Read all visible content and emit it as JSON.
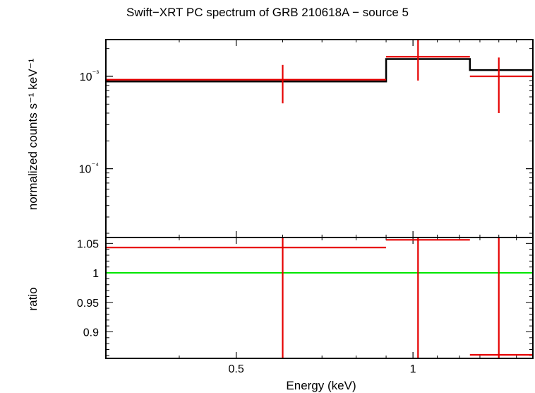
{
  "chart_data": {
    "type": "line",
    "title": "Swift−XRT PC spectrum of GRB 210618A − source 5",
    "xlabel": "Energy (keV)",
    "x_scale": "log",
    "xlim": [
      0.3,
      1.6
    ],
    "x_tick_labels": [
      "0.5",
      "1"
    ],
    "panels": [
      {
        "name": "spectrum",
        "ylabel": "normalized counts s⁻¹ keV⁻¹",
        "y_scale": "log",
        "ylim": [
          1.8e-05,
          0.0025
        ],
        "y_tick_labels": [
          "10⁻³",
          "10⁻⁴"
        ],
        "model": [
          {
            "x_lo": 0.3,
            "x_hi": 0.9,
            "y": 0.00088
          },
          {
            "x_lo": 0.9,
            "x_hi": 1.25,
            "y": 0.00154
          },
          {
            "x_lo": 1.25,
            "x_hi": 1.6,
            "y": 0.00117
          }
        ],
        "data": [
          {
            "x": 0.6,
            "x_lo": 0.3,
            "x_hi": 0.9,
            "y": 0.00092,
            "y_lo": 0.00051,
            "y_hi": 0.00133
          },
          {
            "x": 1.02,
            "x_lo": 0.9,
            "x_hi": 1.25,
            "y": 0.00163,
            "y_lo": 0.0009,
            "y_hi": 0.0025
          },
          {
            "x": 1.4,
            "x_lo": 1.25,
            "x_hi": 1.6,
            "y": 0.001,
            "y_lo": 0.0004,
            "y_hi": 0.0016
          }
        ]
      },
      {
        "name": "ratio",
        "ylabel": "ratio",
        "y_scale": "linear",
        "ylim": [
          0.855,
          1.06
        ],
        "y_ticks": [
          0.9,
          0.95,
          1,
          1.05
        ],
        "y_tick_labels": [
          "0.9",
          "0.95",
          "1",
          "1.05"
        ],
        "reference_line": 1,
        "data": [
          {
            "x": 0.6,
            "x_lo": 0.3,
            "x_hi": 0.9,
            "y": 1.043,
            "y_lo": 0.855,
            "y_hi": 1.06
          },
          {
            "x": 1.02,
            "x_lo": 0.9,
            "x_hi": 1.25,
            "y": 1.056,
            "y_lo": 0.855,
            "y_hi": 1.06
          },
          {
            "x": 1.4,
            "x_lo": 1.25,
            "x_hi": 1.6,
            "y": 0.861,
            "y_lo": 0.855,
            "y_hi": 1.06
          }
        ]
      }
    ],
    "colors": {
      "data": "#e60000",
      "model": "#000000",
      "reference": "#00e600",
      "axes": "#000000"
    },
    "grid": false,
    "legend": "none"
  }
}
